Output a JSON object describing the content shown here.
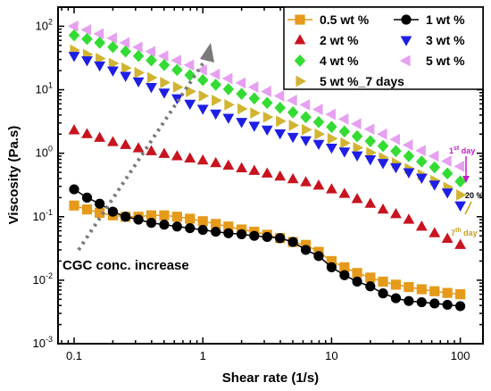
{
  "chart_data": {
    "type": "scatter",
    "title": "",
    "xlabel": "Shear rate (1/s)",
    "ylabel": "Viscosity (Pa.s)",
    "xscale": "log",
    "yscale": "log",
    "xlim": [
      0.075,
      150
    ],
    "ylim": [
      0.001,
      200
    ],
    "x_ticks": [
      {
        "v": 0.1,
        "label": "0.1"
      },
      {
        "v": 1,
        "label": "1"
      },
      {
        "v": 10,
        "label": "10"
      },
      {
        "v": 100,
        "label": "100"
      }
    ],
    "y_ticks": [
      {
        "v": 0.001,
        "base": "10",
        "exp": "-3"
      },
      {
        "v": 0.01,
        "base": "10",
        "exp": "-2"
      },
      {
        "v": 0.1,
        "base": "10",
        "exp": "-1"
      },
      {
        "v": 1,
        "base": "10",
        "exp": "0"
      },
      {
        "v": 10,
        "base": "10",
        "exp": "1"
      },
      {
        "v": 100,
        "base": "10",
        "exp": "2"
      }
    ],
    "legend_position": "top-right",
    "series": [
      {
        "name": "0.5 wt %",
        "marker": "square",
        "color": "#E69A1A",
        "line": true,
        "line_color": "#E69A1A",
        "x": [
          0.1,
          0.126,
          0.158,
          0.2,
          0.251,
          0.316,
          0.398,
          0.501,
          0.631,
          0.794,
          1,
          1.26,
          1.58,
          2,
          2.51,
          3.16,
          3.98,
          5.01,
          6.31,
          7.94,
          10,
          12.6,
          15.8,
          20,
          25.1,
          31.6,
          39.8,
          50.1,
          63.1,
          79.4,
          100
        ],
        "y": [
          0.15,
          0.13,
          0.115,
          0.105,
          0.1,
          0.1,
          0.105,
          0.105,
          0.1,
          0.093,
          0.085,
          0.077,
          0.07,
          0.063,
          0.058,
          0.052,
          0.046,
          0.04,
          0.036,
          0.028,
          0.02,
          0.016,
          0.013,
          0.011,
          0.0095,
          0.0085,
          0.0078,
          0.0072,
          0.0067,
          0.0063,
          0.006
        ]
      },
      {
        "name": "1 wt %",
        "marker": "circle",
        "color": "#000000",
        "line": true,
        "line_color": "#000000",
        "x": [
          0.1,
          0.126,
          0.158,
          0.2,
          0.251,
          0.316,
          0.398,
          0.501,
          0.631,
          0.794,
          1,
          1.26,
          1.58,
          2,
          2.51,
          3.16,
          3.98,
          5.01,
          6.31,
          7.94,
          10,
          12.6,
          15.8,
          20,
          25.1,
          31.6,
          39.8,
          50.1,
          63.1,
          79.4,
          100
        ],
        "y": [
          0.27,
          0.2,
          0.16,
          0.12,
          0.1,
          0.09,
          0.08,
          0.075,
          0.07,
          0.066,
          0.062,
          0.058,
          0.055,
          0.053,
          0.05,
          0.048,
          0.046,
          0.04,
          0.03,
          0.024,
          0.016,
          0.012,
          0.0095,
          0.008,
          0.0062,
          0.0052,
          0.0047,
          0.0045,
          0.0043,
          0.0041,
          0.0039
        ]
      },
      {
        "name": "2 wt %",
        "marker": "triangle-up",
        "color": "#C8141E",
        "line": false,
        "x": [
          0.1,
          0.126,
          0.158,
          0.2,
          0.251,
          0.316,
          0.398,
          0.501,
          0.631,
          0.794,
          1,
          1.26,
          1.58,
          2,
          2.51,
          3.16,
          3.98,
          5.01,
          6.31,
          7.94,
          10,
          12.6,
          15.8,
          20,
          25.1,
          31.6,
          39.8,
          50.1,
          63.1,
          79.4,
          100
        ],
        "y": [
          2.3,
          2.0,
          1.75,
          1.5,
          1.35,
          1.2,
          1.08,
          0.98,
          0.9,
          0.83,
          0.77,
          0.7,
          0.64,
          0.58,
          0.53,
          0.48,
          0.43,
          0.39,
          0.35,
          0.31,
          0.27,
          0.23,
          0.19,
          0.16,
          0.13,
          0.11,
          0.09,
          0.07,
          0.055,
          0.045,
          0.036
        ]
      },
      {
        "name": "3 wt %",
        "marker": "triangle-down",
        "color": "#1E1EE6",
        "line": false,
        "x": [
          0.1,
          0.126,
          0.158,
          0.2,
          0.251,
          0.316,
          0.398,
          0.501,
          0.631,
          0.794,
          1,
          1.26,
          1.58,
          2,
          2.51,
          3.16,
          3.98,
          5.01,
          6.31,
          7.94,
          10,
          12.6,
          15.8,
          20,
          25.1,
          31.6,
          39.8,
          50.1,
          63.1,
          79.4,
          100
        ],
        "y": [
          34,
          29,
          24,
          20,
          16.5,
          13.5,
          11,
          9,
          7.3,
          6,
          5,
          4.2,
          3.6,
          3.1,
          2.7,
          2.35,
          2.05,
          1.8,
          1.6,
          1.4,
          1.22,
          1.06,
          0.92,
          0.8,
          0.7,
          0.6,
          0.5,
          0.41,
          0.32,
          0.24,
          0.15
        ]
      },
      {
        "name": "4 wt %",
        "marker": "diamond",
        "color": "#32DC32",
        "line": false,
        "x": [
          0.1,
          0.126,
          0.158,
          0.2,
          0.251,
          0.316,
          0.398,
          0.501,
          0.631,
          0.794,
          1,
          1.26,
          1.58,
          2,
          2.51,
          3.16,
          3.98,
          5.01,
          6.31,
          7.94,
          10,
          12.6,
          15.8,
          20,
          25.1,
          31.6,
          39.8,
          50.1,
          63.1,
          79.4,
          100
        ],
        "y": [
          72,
          63,
          55,
          47,
          40,
          34,
          29,
          24.5,
          20.5,
          17,
          14.2,
          12,
          10.2,
          8.6,
          7.3,
          6.2,
          5.2,
          4.4,
          3.7,
          3.1,
          2.6,
          2.2,
          1.85,
          1.55,
          1.3,
          1.08,
          0.9,
          0.74,
          0.6,
          0.48,
          0.36
        ]
      },
      {
        "name": "5 wt %",
        "marker": "triangle-left",
        "color": "#E6A0F0",
        "line": false,
        "x": [
          0.1,
          0.126,
          0.158,
          0.2,
          0.251,
          0.316,
          0.398,
          0.501,
          0.631,
          0.794,
          1,
          1.26,
          1.58,
          2,
          2.51,
          3.16,
          3.98,
          5.01,
          6.31,
          7.94,
          10,
          12.6,
          15.8,
          20,
          25.1,
          31.6,
          39.8,
          50.1,
          63.1,
          79.4,
          100
        ],
        "y": [
          100,
          88,
          76,
          65,
          55,
          47,
          40,
          34,
          29,
          24.5,
          20.5,
          17.5,
          15,
          12.8,
          11,
          9.4,
          8,
          6.8,
          5.8,
          4.9,
          4.1,
          3.45,
          2.9,
          2.4,
          2.0,
          1.65,
          1.35,
          1.1,
          0.9,
          0.75,
          0.62
        ]
      },
      {
        "name": "5 wt %_7 days",
        "marker": "triangle-right",
        "color": "#D2B432",
        "line": false,
        "x": [
          0.1,
          0.126,
          0.158,
          0.2,
          0.251,
          0.316,
          0.398,
          0.501,
          0.631,
          0.794,
          1,
          1.26,
          1.58,
          2,
          2.51,
          3.16,
          3.98,
          5.01,
          6.31,
          7.94,
          10,
          12.6,
          15.8,
          20,
          25.1,
          31.6,
          39.8,
          50.1,
          63.1,
          79.4,
          100
        ],
        "y": [
          42,
          36,
          31,
          26,
          22,
          18.5,
          15.5,
          13,
          11,
          9.4,
          8,
          6.8,
          5.8,
          5,
          4.3,
          3.7,
          3.2,
          2.75,
          2.35,
          2.0,
          1.7,
          1.45,
          1.22,
          1.02,
          0.85,
          0.7,
          0.57,
          0.46,
          0.37,
          0.29,
          0.22
        ]
      }
    ],
    "annotations": {
      "conc_text": "CGC conc. increase",
      "day1": "1",
      "day1_sup": "st",
      "day1_word": " day",
      "pct": "20 %",
      "day7": "7",
      "day7_sup": "th",
      "day7_word": " day"
    }
  }
}
